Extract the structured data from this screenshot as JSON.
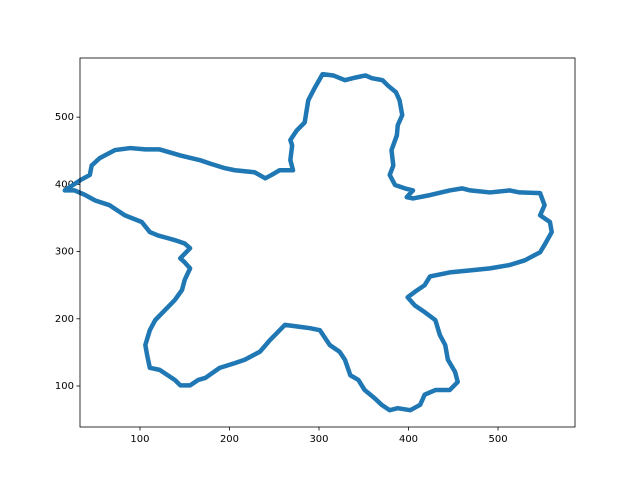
{
  "chart_data": {
    "type": "line",
    "color": "#1f77b4",
    "x": [
      304,
      316,
      329,
      341,
      352,
      359,
      371,
      377,
      386,
      390,
      393,
      388,
      387,
      381,
      383,
      379,
      385,
      396,
      405,
      398,
      405,
      424,
      446,
      460,
      469,
      491,
      513,
      524,
      547,
      552,
      547,
      558,
      560,
      552,
      547,
      530,
      513,
      491,
      469,
      446,
      424,
      418,
      407,
      399,
      407,
      418,
      430,
      435,
      441,
      444,
      452,
      455,
      446,
      430,
      418,
      413,
      402,
      388,
      379,
      370,
      362,
      351,
      344,
      335,
      329,
      323,
      312,
      301,
      290,
      279,
      262,
      245,
      234,
      217,
      206,
      189,
      173,
      165,
      156,
      145,
      139,
      122,
      111,
      108,
      106,
      111,
      117,
      128,
      139,
      147,
      150,
      156,
      150,
      145,
      156,
      150,
      139,
      131,
      120,
      111,
      102,
      83,
      66,
      50,
      39,
      27,
      16,
      33,
      44,
      46,
      55,
      72,
      89,
      106,
      122,
      145,
      167,
      178,
      195,
      206,
      228,
      240,
      247,
      256,
      271,
      268,
      270,
      268,
      275,
      284,
      288,
      295,
      304
    ],
    "values": [
      564,
      562,
      555,
      559,
      562,
      558,
      555,
      547,
      537,
      525,
      503,
      488,
      473,
      451,
      428,
      414,
      399,
      394,
      391,
      381,
      379,
      384,
      391,
      394,
      391,
      388,
      391,
      388,
      387,
      369,
      354,
      344,
      329,
      310,
      299,
      287,
      280,
      275,
      272,
      269,
      263,
      250,
      240,
      232,
      220,
      210,
      198,
      176,
      161,
      139,
      121,
      106,
      94,
      94,
      87,
      72,
      64,
      67,
      64,
      72,
      82,
      94,
      109,
      116,
      139,
      151,
      161,
      183,
      186,
      188,
      191,
      168,
      151,
      139,
      134,
      127,
      112,
      109,
      101,
      101,
      109,
      124,
      127,
      146,
      161,
      183,
      198,
      213,
      228,
      243,
      258,
      275,
      284,
      290,
      305,
      312,
      317,
      320,
      324,
      329,
      344,
      354,
      369,
      376,
      384,
      391,
      391,
      406,
      414,
      428,
      439,
      451,
      454,
      452,
      452,
      443,
      436,
      431,
      424,
      421,
      418,
      409,
      414,
      421,
      421,
      436,
      458,
      466,
      480,
      492,
      525,
      543,
      564
    ],
    "xlim": [
      33,
      586
    ],
    "ylim": [
      39,
      588
    ],
    "xticks": [
      100,
      200,
      300,
      400,
      500
    ],
    "yticks": [
      100,
      200,
      300,
      400,
      500
    ]
  }
}
